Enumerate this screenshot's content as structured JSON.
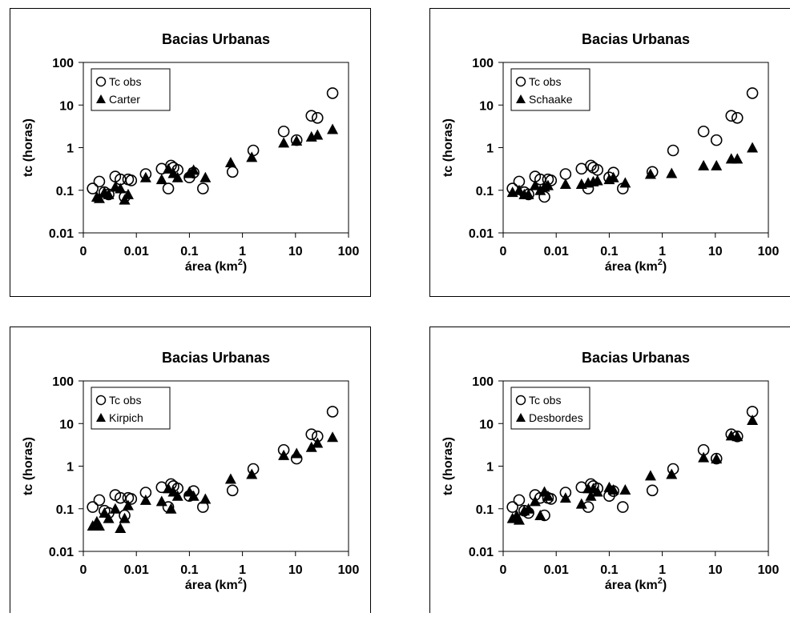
{
  "chart_data": [
    {
      "type": "scatter",
      "title": "Bacias Urbanas",
      "xlabel": "área (km",
      "xlabel_sup": "2",
      "xlabel_close": ")",
      "ylabel": "tc (horas)",
      "x_scale": "log",
      "y_scale": "log",
      "xlim": [
        0.001,
        100
      ],
      "ylim": [
        0.01,
        100
      ],
      "x_ticks": [
        "0",
        "0.01",
        "0.1",
        "1",
        "10",
        "100"
      ],
      "y_ticks": [
        "100",
        "10",
        "1",
        "0.1",
        "0.01"
      ],
      "legend_position": "top-left",
      "grid": false,
      "series": [
        {
          "name": "Tc obs",
          "marker": "circle-open",
          "x": [
            0.0015,
            0.002,
            0.0025,
            0.003,
            0.004,
            0.005,
            0.006,
            0.007,
            0.008,
            0.015,
            0.03,
            0.04,
            0.045,
            0.05,
            0.06,
            0.1,
            0.12,
            0.18,
            0.65,
            1.6,
            6,
            10.5,
            20,
            26,
            50
          ],
          "y": [
            0.11,
            0.16,
            0.09,
            0.08,
            0.21,
            0.18,
            0.07,
            0.18,
            0.17,
            0.24,
            0.32,
            0.11,
            0.38,
            0.34,
            0.3,
            0.2,
            0.26,
            0.11,
            0.27,
            0.86,
            2.4,
            1.5,
            5.6,
            5,
            19
          ]
        },
        {
          "name": "Carter",
          "marker": "triangle-filled",
          "x": [
            0.0018,
            0.002,
            0.0025,
            0.003,
            0.004,
            0.005,
            0.006,
            0.007,
            0.015,
            0.03,
            0.04,
            0.05,
            0.06,
            0.1,
            0.12,
            0.2,
            0.6,
            1.5,
            6,
            10.5,
            20,
            26,
            50
          ],
          "y": [
            0.07,
            0.065,
            0.09,
            0.08,
            0.12,
            0.11,
            0.06,
            0.08,
            0.2,
            0.18,
            0.32,
            0.25,
            0.2,
            0.25,
            0.3,
            0.2,
            0.45,
            0.6,
            1.3,
            1.45,
            1.8,
            2,
            2.7
          ]
        }
      ]
    },
    {
      "type": "scatter",
      "title": "Bacias Urbanas",
      "xlabel": "área (km",
      "xlabel_sup": "2",
      "xlabel_close": ")",
      "ylabel": "tc (horas)",
      "x_scale": "log",
      "y_scale": "log",
      "xlim": [
        0.001,
        100
      ],
      "ylim": [
        0.01,
        100
      ],
      "x_ticks": [
        "0",
        "0.01",
        "0.1",
        "1",
        "10",
        "100"
      ],
      "y_ticks": [
        "100",
        "10",
        "1",
        "0.1",
        "0.01"
      ],
      "legend_position": "top-left",
      "grid": false,
      "series": [
        {
          "name": "Tc obs",
          "marker": "circle-open",
          "x": [
            0.0015,
            0.002,
            0.0025,
            0.003,
            0.004,
            0.005,
            0.006,
            0.007,
            0.008,
            0.015,
            0.03,
            0.04,
            0.045,
            0.05,
            0.06,
            0.1,
            0.12,
            0.18,
            0.65,
            1.6,
            6,
            10.5,
            20,
            26,
            50
          ],
          "y": [
            0.11,
            0.16,
            0.09,
            0.08,
            0.21,
            0.18,
            0.07,
            0.18,
            0.17,
            0.24,
            0.32,
            0.11,
            0.38,
            0.34,
            0.3,
            0.2,
            0.26,
            0.11,
            0.27,
            0.86,
            2.4,
            1.5,
            5.6,
            5,
            19
          ]
        },
        {
          "name": "Schaake",
          "marker": "triangle-filled",
          "x": [
            0.0015,
            0.002,
            0.0025,
            0.003,
            0.004,
            0.005,
            0.006,
            0.007,
            0.015,
            0.03,
            0.04,
            0.05,
            0.06,
            0.1,
            0.12,
            0.2,
            0.6,
            1.5,
            6,
            10.5,
            20,
            26,
            50
          ],
          "y": [
            0.09,
            0.1,
            0.08,
            0.08,
            0.13,
            0.1,
            0.12,
            0.13,
            0.14,
            0.14,
            0.15,
            0.16,
            0.17,
            0.18,
            0.2,
            0.15,
            0.24,
            0.25,
            0.38,
            0.38,
            0.55,
            0.55,
            1
          ]
        }
      ]
    },
    {
      "type": "scatter",
      "title": "Bacias Urbanas",
      "xlabel": "área (km",
      "xlabel_sup": "2",
      "xlabel_close": ")",
      "ylabel": "tc (horas)",
      "x_scale": "log",
      "y_scale": "log",
      "xlim": [
        0.001,
        100
      ],
      "ylim": [
        0.01,
        100
      ],
      "x_ticks": [
        "0",
        "0.01",
        "0.1",
        "1",
        "10",
        "100"
      ],
      "y_ticks": [
        "100",
        "10",
        "1",
        "0.1",
        "0.01"
      ],
      "legend_position": "top-left",
      "grid": false,
      "series": [
        {
          "name": "Tc obs",
          "marker": "circle-open",
          "x": [
            0.0015,
            0.002,
            0.0025,
            0.003,
            0.004,
            0.005,
            0.006,
            0.007,
            0.008,
            0.015,
            0.03,
            0.04,
            0.045,
            0.05,
            0.06,
            0.1,
            0.12,
            0.18,
            0.65,
            1.6,
            6,
            10.5,
            20,
            26,
            50
          ],
          "y": [
            0.11,
            0.16,
            0.09,
            0.08,
            0.21,
            0.18,
            0.07,
            0.18,
            0.17,
            0.24,
            0.32,
            0.11,
            0.38,
            0.34,
            0.3,
            0.2,
            0.26,
            0.11,
            0.27,
            0.86,
            2.4,
            1.5,
            5.6,
            5,
            19
          ]
        },
        {
          "name": "Kirpich",
          "marker": "triangle-filled",
          "x": [
            0.0015,
            0.0018,
            0.002,
            0.0025,
            0.003,
            0.004,
            0.005,
            0.006,
            0.007,
            0.015,
            0.03,
            0.04,
            0.045,
            0.05,
            0.06,
            0.1,
            0.12,
            0.2,
            0.6,
            1.5,
            6,
            10.5,
            20,
            26,
            50
          ],
          "y": [
            0.04,
            0.05,
            0.04,
            0.08,
            0.06,
            0.1,
            0.035,
            0.06,
            0.12,
            0.16,
            0.15,
            0.3,
            0.1,
            0.25,
            0.2,
            0.25,
            0.2,
            0.17,
            0.5,
            0.65,
            1.8,
            2,
            2.8,
            3.5,
            4.8
          ]
        }
      ]
    },
    {
      "type": "scatter",
      "title": "Bacias Urbanas",
      "xlabel": "área (km",
      "xlabel_sup": "2",
      "xlabel_close": ")",
      "ylabel": "tc (horas)",
      "x_scale": "log",
      "y_scale": "log",
      "xlim": [
        0.001,
        100
      ],
      "ylim": [
        0.01,
        100
      ],
      "x_ticks": [
        "0",
        "0.01",
        "0.1",
        "1",
        "10",
        "100"
      ],
      "y_ticks": [
        "100",
        "10",
        "1",
        "0.1",
        "0.01"
      ],
      "legend_position": "top-left",
      "grid": false,
      "series": [
        {
          "name": "Tc obs",
          "marker": "circle-open",
          "x": [
            0.0015,
            0.002,
            0.0025,
            0.003,
            0.004,
            0.005,
            0.006,
            0.007,
            0.008,
            0.015,
            0.03,
            0.04,
            0.045,
            0.05,
            0.06,
            0.1,
            0.12,
            0.18,
            0.65,
            1.6,
            6,
            10.5,
            20,
            26,
            50
          ],
          "y": [
            0.11,
            0.16,
            0.09,
            0.08,
            0.21,
            0.18,
            0.07,
            0.18,
            0.17,
            0.24,
            0.32,
            0.11,
            0.38,
            0.34,
            0.3,
            0.2,
            0.26,
            0.11,
            0.27,
            0.86,
            2.4,
            1.5,
            5.6,
            5,
            19
          ]
        },
        {
          "name": "Desbordes",
          "marker": "triangle-filled",
          "x": [
            0.0015,
            0.0018,
            0.002,
            0.0025,
            0.003,
            0.004,
            0.005,
            0.006,
            0.007,
            0.015,
            0.03,
            0.04,
            0.045,
            0.05,
            0.06,
            0.1,
            0.12,
            0.2,
            0.6,
            1.5,
            6,
            10.5,
            20,
            26,
            50
          ],
          "y": [
            0.06,
            0.07,
            0.055,
            0.09,
            0.1,
            0.15,
            0.07,
            0.25,
            0.2,
            0.18,
            0.13,
            0.3,
            0.2,
            0.3,
            0.25,
            0.32,
            0.28,
            0.28,
            0.6,
            0.65,
            1.6,
            1.5,
            5.2,
            5,
            12
          ]
        }
      ]
    }
  ]
}
